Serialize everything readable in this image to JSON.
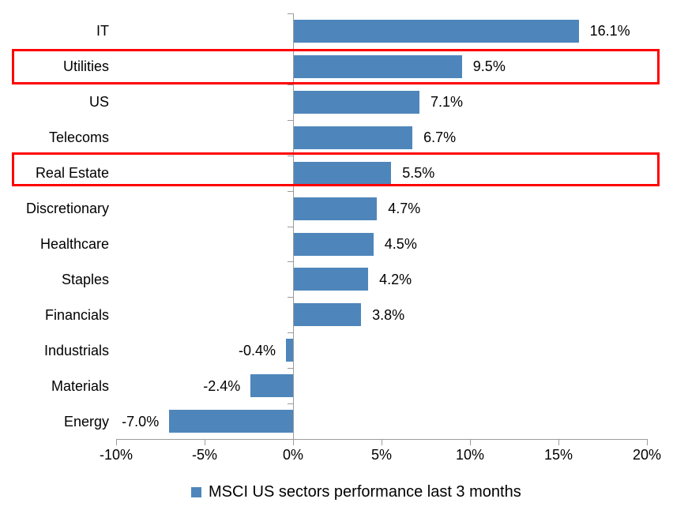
{
  "chart_data": {
    "type": "bar",
    "orientation": "horizontal",
    "categories": [
      "IT",
      "Utilities",
      "US",
      "Telecoms",
      "Real Estate",
      "Discretionary",
      "Healthcare",
      "Staples",
      "Financials",
      "Industrials",
      "Materials",
      "Energy"
    ],
    "values": [
      16.1,
      9.5,
      7.1,
      6.7,
      5.5,
      4.7,
      4.5,
      4.2,
      3.8,
      -0.4,
      -2.4,
      -7.0
    ],
    "value_labels": [
      "16.1%",
      "9.5%",
      "7.1%",
      "6.7%",
      "5.5%",
      "4.7%",
      "4.5%",
      "4.2%",
      "3.8%",
      "-0.4%",
      "-2.4%",
      "-7.0%"
    ],
    "highlighted_categories": [
      "Utilities",
      "Real Estate"
    ],
    "x_axis": {
      "min": -10,
      "max": 20,
      "unit": "%",
      "tick_values": [
        -10,
        -5,
        0,
        5,
        10,
        15,
        20
      ],
      "tick_labels": [
        "-10%",
        "-5%",
        "0%",
        "5%",
        "10%",
        "15%",
        "20%"
      ]
    },
    "legend": {
      "position": "bottom",
      "marker": "square",
      "marker_color": "#4e86bb",
      "label": "MSCI US sectors performance last 3 months"
    },
    "colors": {
      "bar": "#4e86bb",
      "highlight_box": "#ff0000",
      "axis": "#9b9b9b",
      "text": "#000000"
    },
    "grid": false
  }
}
